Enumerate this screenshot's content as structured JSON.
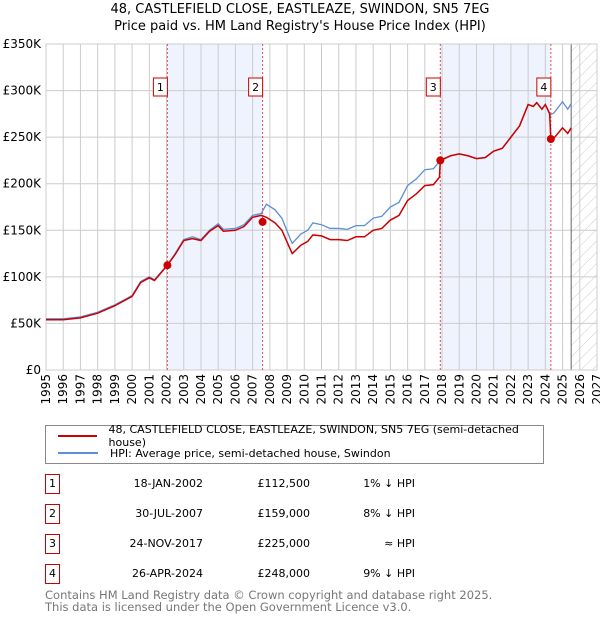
{
  "chart_data": {
    "type": "line",
    "title": "48, CASTLEFIELD CLOSE, EASTLEAZE, SWINDON, SN5 7EG",
    "subtitle": "Price paid vs. HM Land Registry's House Price Index (HPI)",
    "xlim": [
      1995,
      2027
    ],
    "ylim": [
      0,
      350000
    ],
    "x_ticks": [
      "1995",
      "1996",
      "1997",
      "1998",
      "1999",
      "2000",
      "2001",
      "2002",
      "2003",
      "2004",
      "2005",
      "2006",
      "2007",
      "2008",
      "2009",
      "2010",
      "2011",
      "2012",
      "2013",
      "2014",
      "2015",
      "2016",
      "2017",
      "2018",
      "2019",
      "2020",
      "2021",
      "2022",
      "2023",
      "2024",
      "2025",
      "2026",
      "2027"
    ],
    "y_ticks": [
      "£0",
      "£50K",
      "£100K",
      "£150K",
      "£200K",
      "£250K",
      "£300K",
      "£350K"
    ],
    "grid": true,
    "series": [
      {
        "name": "48, CASTLEFIELD CLOSE, EASTLEAZE, SWINDON, SN5 7EG (semi-detached house)",
        "color": "#cc0000",
        "x": [
          1995,
          1996,
          1997,
          1998,
          1999,
          2000,
          2000.5,
          2001,
          2001.3,
          2002.05,
          2002.5,
          2003,
          2003.5,
          2004,
          2004.5,
          2005,
          2005.3,
          2006,
          2006.5,
          2007,
          2007.5,
          2007.8,
          2008.3,
          2008.7,
          2009.2,
          2009.3,
          2009.8,
          2010.2,
          2010.5,
          2011,
          2011.5,
          2012,
          2012.5,
          2013,
          2013.5,
          2014,
          2014.5,
          2015,
          2015.5,
          2016,
          2016.5,
          2017,
          2017.5,
          2017.85,
          2017.9,
          2018.5,
          2019,
          2019.5,
          2020,
          2020.5,
          2021,
          2021.5,
          2022,
          2022.5,
          2023,
          2023.3,
          2023.5,
          2023.8,
          2024,
          2024.25,
          2024.32,
          2024.5,
          2025,
          2025.3,
          2025.5
        ],
        "y": [
          54000,
          54000,
          56000,
          61000,
          69000,
          79000,
          94000,
          99000,
          96000,
          112500,
          124000,
          139000,
          141000,
          139000,
          149000,
          155000,
          149000,
          150000,
          154000,
          164000,
          166000,
          164000,
          158000,
          150000,
          129000,
          125000,
          134000,
          138000,
          145000,
          144000,
          140000,
          140000,
          139000,
          143000,
          143000,
          150000,
          152000,
          161000,
          166000,
          182000,
          189000,
          198000,
          199000,
          207000,
          225000,
          230000,
          232000,
          230000,
          227000,
          228000,
          235000,
          238000,
          250000,
          262000,
          285000,
          283000,
          287000,
          280000,
          285000,
          275000,
          248000,
          249000,
          260000,
          254000,
          260000
        ]
      },
      {
        "name": "HPI: Average price, semi-detached house, Swindon",
        "color": "#5b8fd6",
        "x": [
          1995,
          1996,
          1997,
          1998,
          1999,
          2000,
          2000.5,
          2001,
          2001.3,
          2002.05,
          2002.5,
          2003,
          2003.5,
          2004,
          2004.5,
          2005,
          2005.3,
          2006,
          2006.5,
          2007,
          2007.5,
          2007.8,
          2008.3,
          2008.7,
          2009.2,
          2009.3,
          2009.8,
          2010.2,
          2010.5,
          2011,
          2011.5,
          2012,
          2012.5,
          2013,
          2013.5,
          2014,
          2014.5,
          2015,
          2015.5,
          2016,
          2016.5,
          2017,
          2017.5,
          2017.9,
          2018.5,
          2019,
          2019.5,
          2020,
          2020.5,
          2021,
          2021.5,
          2022,
          2022.5,
          2023,
          2023.3,
          2023.5,
          2023.8,
          2024,
          2024.3,
          2024.5,
          2025,
          2025.3,
          2025.5
        ],
        "y": [
          55000,
          55000,
          57000,
          62000,
          70000,
          80000,
          95000,
          100000,
          97000,
          113000,
          125000,
          140000,
          143000,
          140000,
          150000,
          157000,
          151000,
          152000,
          156000,
          166000,
          168000,
          178000,
          172000,
          163000,
          140000,
          136000,
          146000,
          150000,
          158000,
          156000,
          152000,
          152000,
          151000,
          155000,
          155000,
          163000,
          165000,
          175000,
          180000,
          198000,
          205000,
          215000,
          216000,
          225000,
          230000,
          232000,
          230000,
          227000,
          228000,
          235000,
          238000,
          250000,
          262000,
          285000,
          283000,
          287000,
          280000,
          285000,
          274000,
          276000,
          288000,
          280000,
          286000
        ]
      }
    ],
    "sales": [
      {
        "label": "1",
        "x": 2002.05,
        "date": "18-JAN-2002",
        "price": "£112,500",
        "value": 112500,
        "hpi": "1% ↓ HPI"
      },
      {
        "label": "2",
        "x": 2007.58,
        "date": "30-JUL-2007",
        "price": "£159,000",
        "value": 159000,
        "hpi": "8% ↓ HPI"
      },
      {
        "label": "3",
        "x": 2017.9,
        "date": "24-NOV-2017",
        "price": "£225,000",
        "value": 225000,
        "hpi": "≈ HPI"
      },
      {
        "label": "4",
        "x": 2024.32,
        "date": "26-APR-2024",
        "price": "£248,000",
        "value": 248000,
        "hpi": "9% ↓ HPI"
      }
    ],
    "shaded_ranges": [
      [
        2002.05,
        2007.58
      ],
      [
        2017.9,
        2024.32
      ]
    ],
    "forecast_start": 2025.5,
    "legend_position": "below"
  },
  "footer": {
    "line1": "Contains HM Land Registry data © Crown copyright and database right 2025.",
    "line2": "This data is licensed under the Open Government Licence v3.0."
  }
}
